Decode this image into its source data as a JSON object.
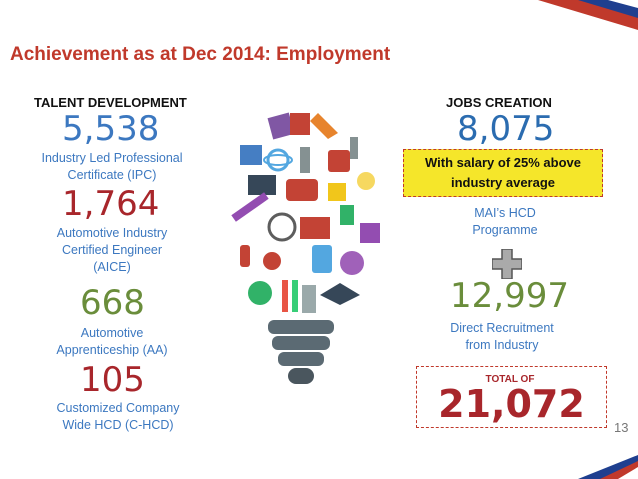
{
  "title": "Achievement as at Dec 2014: Employment",
  "talent": {
    "heading": "TALENT DEVELOPMENT",
    "items": [
      {
        "number": "5,538",
        "desc1": "Industry Led Professional",
        "desc2": "Certificate (IPC)",
        "desc3": ""
      },
      {
        "number": "1,764",
        "desc1": "Automotive Industry",
        "desc2": "Certified Engineer",
        "desc3": "(AICE)"
      },
      {
        "number": "668",
        "desc1": "Automotive",
        "desc2": "Apprenticeship (AA)",
        "desc3": ""
      },
      {
        "number": "105",
        "desc1": "Customized Company",
        "desc2": "Wide HCD (C-HCD)",
        "desc3": ""
      }
    ]
  },
  "jobs": {
    "heading": "JOBS CREATION",
    "hcd_number": "8,075",
    "salary_line1": "With salary of 25% above",
    "salary_line2": "industry average",
    "hcd_desc1": "MAI’s HCD",
    "hcd_desc2": "Programme",
    "direct_number": "12,997",
    "direct_desc1": "Direct Recruitment",
    "direct_desc2": "from Industry",
    "total_label": "TOTAL OF",
    "total_number": "21,072"
  },
  "page_number": "13",
  "icons": {
    "bulb": "lightbulb-education-icon",
    "plus": "plus-icon"
  },
  "colors": {
    "title": "#c0392b",
    "blue": "#3c78c0",
    "red": "#a8262b",
    "green": "#6a8d3b",
    "highlight": "#f5e62a"
  }
}
